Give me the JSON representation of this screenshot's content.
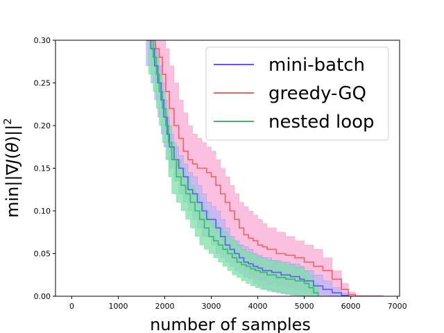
{
  "chart_data": {
    "type": "line",
    "title": "",
    "xlabel": "number of samples",
    "ylabel": "min||∇J(θ)||²",
    "ylabel_parts": {
      "prefix": "min||∇",
      "J": "J",
      "mid": "(",
      "theta": "θ",
      "suffix": ")||",
      "sup": "2"
    },
    "xlim": [
      -350,
      7050
    ],
    "ylim": [
      0.0,
      0.3
    ],
    "xticks": [
      0,
      1000,
      2000,
      3000,
      4000,
      5000,
      6000,
      7000
    ],
    "xtick_labels": [
      "0",
      "1000",
      "2000",
      "3000",
      "4000",
      "5000",
      "6000",
      "7000"
    ],
    "yticks": [
      0.0,
      0.05,
      0.1,
      0.15,
      0.2,
      0.25,
      0.3
    ],
    "ytick_labels": [
      "0.00",
      "0.05",
      "0.10",
      "0.15",
      "0.20",
      "0.25",
      "0.30"
    ],
    "legend_position": "top-right",
    "series": [
      {
        "name": "mini-batch",
        "color": "#5b5bf5",
        "fill": "#b7b7f9",
        "x": [
          1600,
          1700,
          1780,
          1850,
          1920,
          1980,
          2050,
          2100,
          2200,
          2300,
          2400,
          2500,
          2600,
          2700,
          2800,
          2900,
          3000,
          3100,
          3200,
          3300,
          3400,
          3500,
          3600,
          3700,
          3800,
          3900,
          4000,
          4100,
          4300,
          4500,
          4700,
          4900,
          5000,
          5200,
          5400,
          5600,
          5800,
          5950
        ],
        "y": [
          0.3,
          0.29,
          0.27,
          0.25,
          0.23,
          0.21,
          0.19,
          0.175,
          0.16,
          0.15,
          0.14,
          0.125,
          0.12,
          0.11,
          0.1,
          0.09,
          0.09,
          0.08,
          0.07,
          0.06,
          0.055,
          0.05,
          0.045,
          0.04,
          0.038,
          0.035,
          0.033,
          0.03,
          0.028,
          0.025,
          0.023,
          0.02,
          0.018,
          0.012,
          0.008,
          0.004,
          0.001,
          0.0
        ],
        "lower": [
          0.29,
          0.27,
          0.25,
          0.23,
          0.21,
          0.19,
          0.175,
          0.16,
          0.15,
          0.135,
          0.12,
          0.11,
          0.1,
          0.09,
          0.08,
          0.07,
          0.07,
          0.06,
          0.05,
          0.045,
          0.04,
          0.035,
          0.03,
          0.027,
          0.022,
          0.02,
          0.015,
          0.012,
          0.008,
          0.005,
          0.003,
          0.001,
          0.0,
          0.0,
          0.0,
          0.0,
          0.0,
          0.0
        ],
        "upper": [
          0.3,
          0.3,
          0.29,
          0.27,
          0.25,
          0.23,
          0.21,
          0.19,
          0.175,
          0.165,
          0.155,
          0.145,
          0.14,
          0.13,
          0.12,
          0.11,
          0.105,
          0.1,
          0.09,
          0.08,
          0.07,
          0.065,
          0.06,
          0.058,
          0.055,
          0.05,
          0.048,
          0.045,
          0.042,
          0.04,
          0.038,
          0.035,
          0.03,
          0.025,
          0.018,
          0.01,
          0.004,
          0.0
        ]
      },
      {
        "name": "greedy-GQ",
        "color": "#ef6060",
        "fill": "#f9a9d6",
        "x": [
          1700,
          1800,
          1880,
          1950,
          2020,
          2100,
          2200,
          2300,
          2400,
          2500,
          2600,
          2700,
          2800,
          2900,
          3000,
          3100,
          3200,
          3300,
          3400,
          3500,
          3600,
          3700,
          3800,
          3900,
          4000,
          4100,
          4200,
          4400,
          4600,
          4800,
          5000,
          5200,
          5400,
          5600,
          5800,
          5950,
          6100,
          6300,
          6500,
          6700
        ],
        "y": [
          0.3,
          0.29,
          0.28,
          0.26,
          0.24,
          0.22,
          0.2,
          0.185,
          0.17,
          0.16,
          0.155,
          0.15,
          0.15,
          0.145,
          0.14,
          0.13,
          0.12,
          0.11,
          0.1,
          0.09,
          0.08,
          0.072,
          0.068,
          0.065,
          0.06,
          0.058,
          0.055,
          0.05,
          0.048,
          0.045,
          0.04,
          0.035,
          0.03,
          0.02,
          0.008,
          0.002,
          0.0,
          0.0,
          0.0,
          0.0
        ],
        "lower": [
          0.29,
          0.27,
          0.25,
          0.23,
          0.21,
          0.19,
          0.17,
          0.15,
          0.14,
          0.125,
          0.115,
          0.11,
          0.105,
          0.095,
          0.085,
          0.08,
          0.075,
          0.065,
          0.055,
          0.045,
          0.04,
          0.035,
          0.03,
          0.025,
          0.022,
          0.02,
          0.018,
          0.015,
          0.012,
          0.01,
          0.008,
          0.005,
          0.002,
          0.0,
          0.0,
          0.0,
          0.0,
          0.0,
          0.0,
          0.0
        ],
        "upper": [
          0.3,
          0.3,
          0.3,
          0.3,
          0.29,
          0.27,
          0.25,
          0.23,
          0.215,
          0.2,
          0.19,
          0.185,
          0.18,
          0.175,
          0.17,
          0.16,
          0.15,
          0.14,
          0.13,
          0.12,
          0.11,
          0.105,
          0.1,
          0.095,
          0.09,
          0.085,
          0.08,
          0.075,
          0.07,
          0.065,
          0.06,
          0.055,
          0.045,
          0.03,
          0.015,
          0.005,
          0.001,
          0.001,
          0.001,
          0.001
        ]
      },
      {
        "name": "nested loop",
        "color": "#37b867",
        "fill": "#7fe0a8",
        "x": [
          1650,
          1750,
          1820,
          1880,
          1950,
          2020,
          2080,
          2150,
          2250,
          2350,
          2450,
          2550,
          2650,
          2750,
          2850,
          2950,
          3050,
          3150,
          3250,
          3350,
          3450,
          3550,
          3650,
          3750,
          3850,
          3950,
          4050,
          4200,
          4400,
          4600,
          4800,
          5000,
          5100,
          5200,
          5300
        ],
        "y": [
          0.3,
          0.28,
          0.26,
          0.24,
          0.22,
          0.2,
          0.18,
          0.16,
          0.14,
          0.13,
          0.12,
          0.11,
          0.1,
          0.09,
          0.08,
          0.07,
          0.065,
          0.06,
          0.055,
          0.05,
          0.045,
          0.04,
          0.037,
          0.035,
          0.032,
          0.03,
          0.028,
          0.025,
          0.022,
          0.02,
          0.018,
          0.015,
          0.01,
          0.004,
          0.0
        ],
        "lower": [
          0.28,
          0.26,
          0.24,
          0.22,
          0.2,
          0.18,
          0.16,
          0.14,
          0.12,
          0.11,
          0.1,
          0.09,
          0.08,
          0.07,
          0.06,
          0.055,
          0.05,
          0.045,
          0.04,
          0.035,
          0.03,
          0.025,
          0.022,
          0.018,
          0.015,
          0.012,
          0.01,
          0.008,
          0.006,
          0.004,
          0.002,
          0.001,
          0.0,
          0.0,
          0.0
        ],
        "upper": [
          0.3,
          0.295,
          0.28,
          0.26,
          0.24,
          0.22,
          0.2,
          0.18,
          0.16,
          0.15,
          0.14,
          0.13,
          0.12,
          0.11,
          0.1,
          0.09,
          0.085,
          0.08,
          0.075,
          0.07,
          0.065,
          0.06,
          0.055,
          0.052,
          0.05,
          0.047,
          0.045,
          0.042,
          0.04,
          0.037,
          0.034,
          0.03,
          0.024,
          0.015,
          0.005
        ]
      }
    ]
  }
}
